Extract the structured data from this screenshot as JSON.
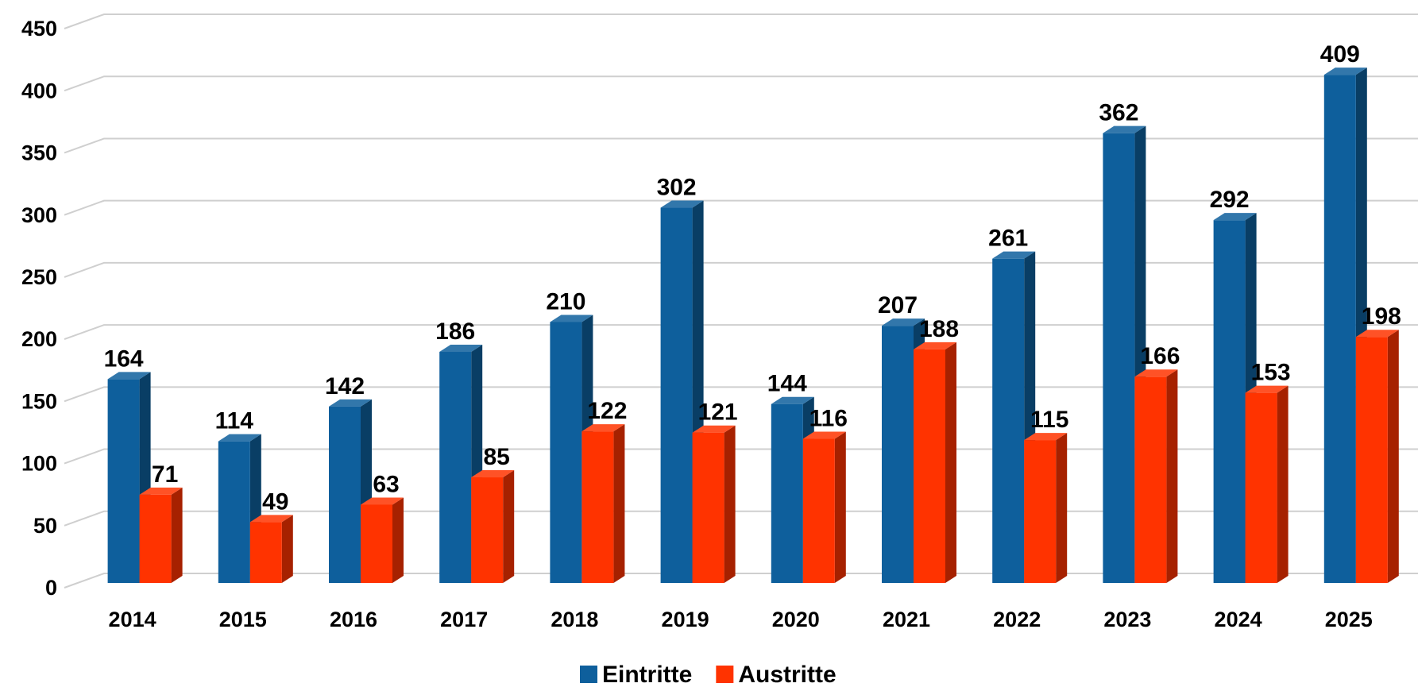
{
  "chart_data": {
    "type": "bar3d",
    "categories": [
      "2014",
      "2015",
      "2016",
      "2017",
      "2018",
      "2019",
      "2020",
      "2021",
      "2022",
      "2023",
      "2024",
      "2025"
    ],
    "series": [
      {
        "name": "Eintritte",
        "color": "#0e5f9c",
        "values": [
          164,
          114,
          142,
          186,
          210,
          302,
          144,
          207,
          261,
          362,
          292,
          409
        ]
      },
      {
        "name": "Austritte",
        "color": "#ff3300",
        "values": [
          71,
          49,
          63,
          85,
          122,
          121,
          116,
          188,
          115,
          166,
          153,
          198
        ]
      }
    ],
    "ylim": [
      0,
      450
    ],
    "yticks": [
      0,
      50,
      100,
      150,
      200,
      250,
      300,
      350,
      400,
      450
    ],
    "grid": true,
    "legend": "bottom"
  }
}
